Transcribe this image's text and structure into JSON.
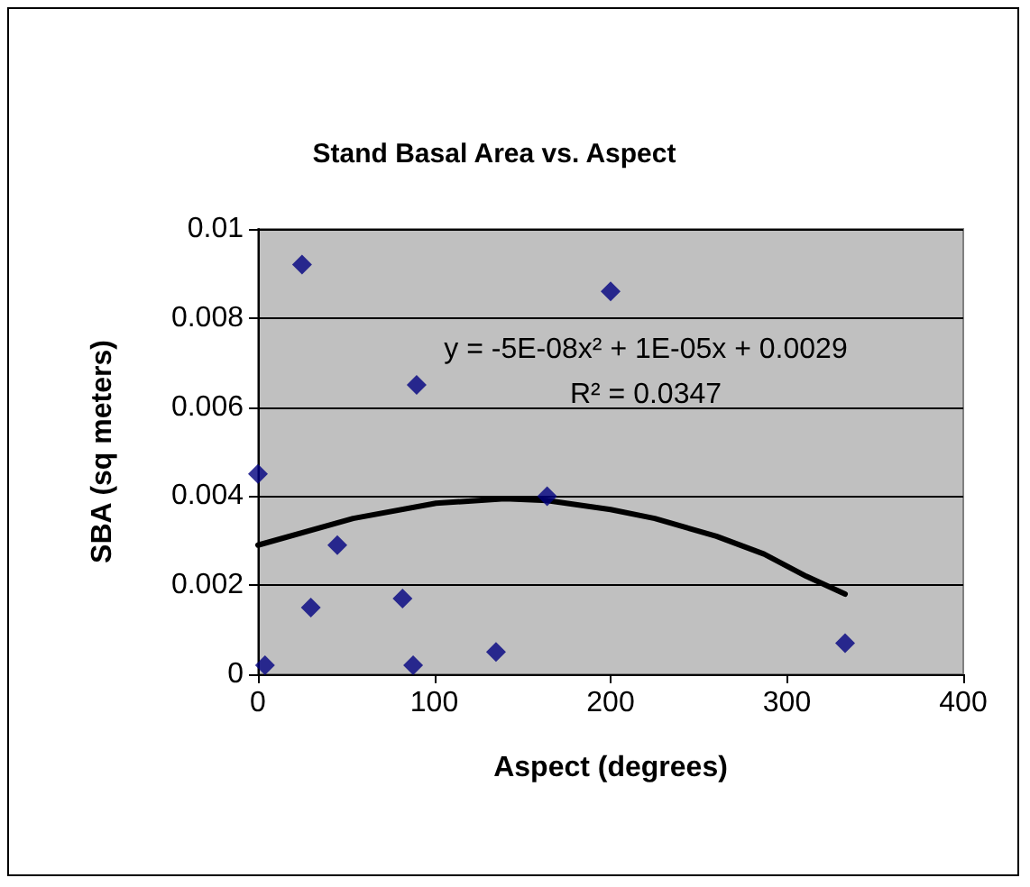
{
  "chart_data": {
    "type": "scatter",
    "title": "Stand Basal Area vs. Aspect",
    "xlabel": "Aspect (degrees)",
    "ylabel": "SBA (sq meters)",
    "annotations": [
      "y = -5E-08x² + 1E-05x + 0.0029",
      "R² = 0.0347"
    ],
    "series": [
      {
        "color": "#000080",
        "marker": "diamond",
        "x": [
          0,
          25,
          200,
          90,
          164,
          45,
          30,
          82,
          4,
          88,
          135,
          333
        ],
        "values": [
          0.0045,
          0.0092,
          0.0086,
          0.0065,
          0.004,
          0.0029,
          0.0015,
          0.0017,
          0.0002,
          0.0002,
          0.0005,
          0.0007
        ]
      },
      {
        "type": "line",
        "color": "#000000",
        "marker": "none",
        "x": [
          0,
          54,
          101,
          140,
          164,
          200,
          225,
          260,
          287,
          311,
          333
        ],
        "values": [
          0.0029,
          0.0035,
          0.00384,
          0.00394,
          0.0039,
          0.0037,
          0.0035,
          0.0031,
          0.0027,
          0.0022,
          0.0018
        ]
      }
    ],
    "xlim": [
      0,
      400
    ],
    "xticks": [
      0,
      100,
      200,
      300,
      400
    ],
    "ylim": [
      0,
      0.01
    ],
    "yticks": [
      0,
      0.002,
      0.004,
      0.006,
      0.008,
      0.01
    ],
    "grid": "y"
  }
}
